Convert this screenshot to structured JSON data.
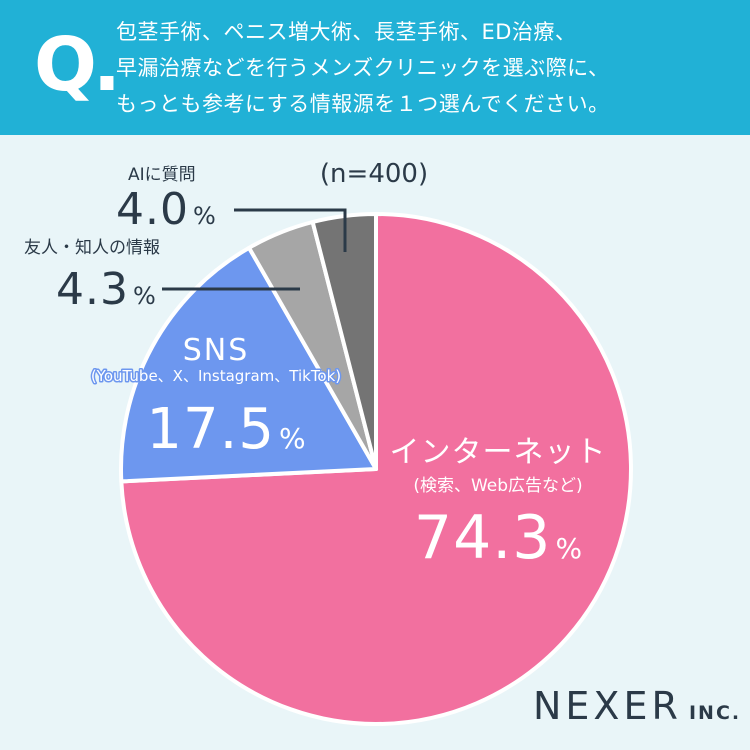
{
  "question": {
    "mark": "Q.",
    "lines": [
      "包茎手術、ペニス増大術、長茎手術、ED治療、",
      "早漏治療などを行うメンズクリニックを選ぶ際に、",
      "もっとも参考にする情報源を１つ選んでください。"
    ]
  },
  "sample": "(n=400)",
  "brand": {
    "name": "NEXER",
    "suffix": "INC."
  },
  "colors": {
    "header_bg": "#21b1d6",
    "page_bg": "#e9f5f8",
    "internet": "#f2709f",
    "sns": "#6d97ef",
    "friends": "#a6a6a6",
    "ai": "#747474",
    "label_dark": "#2b3a48"
  },
  "chart_data": {
    "type": "pie",
    "start": "12 o'clock",
    "direction": "clockwise",
    "slices": [
      {
        "label": "インターネット",
        "sub": "(検索、Web広告など)",
        "value": 74.3,
        "display": "74.3",
        "unit": "%",
        "color": "#f2709f"
      },
      {
        "label": "SNS",
        "sub": "(YouTube、X、Instagram、TikTok)",
        "value": 17.5,
        "display": "17.5",
        "unit": "%",
        "color": "#6d97ef"
      },
      {
        "label": "友人・知人の情報",
        "value": 4.3,
        "display": "4.3",
        "unit": "%",
        "color": "#a6a6a6"
      },
      {
        "label": "AIに質問",
        "value": 4.0,
        "display": "4.0",
        "unit": "%",
        "color": "#747474"
      }
    ]
  }
}
